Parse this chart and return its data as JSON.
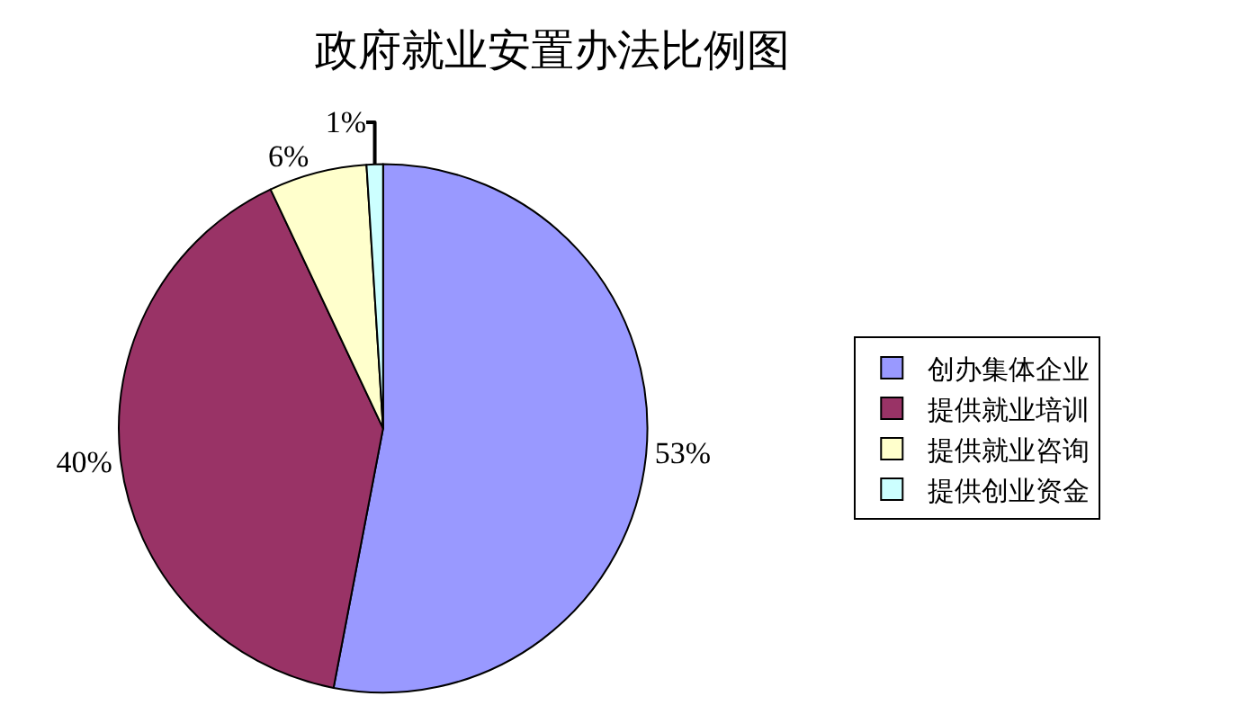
{
  "chart_data": {
    "type": "pie",
    "title": "政府就业安置办法比例图",
    "categories": [
      "创办集体企业",
      "提供就业培训",
      "提供就业咨询",
      "提供创业资金"
    ],
    "values": [
      53,
      40,
      6,
      1
    ],
    "colors": [
      "#9999ff",
      "#993366",
      "#ffffcc",
      "#ccffff"
    ],
    "value_labels": [
      "53%",
      "40%",
      "6%",
      "1%"
    ],
    "legend": "right"
  }
}
